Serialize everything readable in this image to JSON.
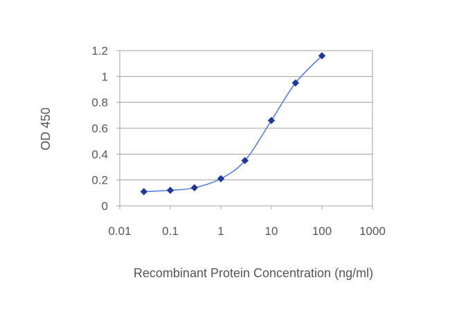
{
  "chart_data": {
    "type": "line",
    "title": "",
    "xlabel": "Recombinant Protein Concentration (ng/ml)",
    "ylabel": "OD 450",
    "x_scale": "log",
    "xlim": [
      0.01,
      1000
    ],
    "ylim": [
      0,
      1.2
    ],
    "x_ticks": [
      0.01,
      0.1,
      1,
      10,
      100,
      1000
    ],
    "x_tick_labels": [
      "0.01",
      "0.1",
      "1",
      "10",
      "100",
      "1000"
    ],
    "y_ticks": [
      0,
      0.2,
      0.4,
      0.6,
      0.8,
      1,
      1.2
    ],
    "y_tick_labels": [
      "0",
      "0.2",
      "0.4",
      "0.6",
      "0.8",
      "1",
      "1.2"
    ],
    "grid": "horizontal",
    "legend": "none",
    "series": [
      {
        "x": [
          0.03,
          0.1,
          0.3,
          1,
          3,
          10,
          30,
          100
        ],
        "y": [
          0.11,
          0.12,
          0.14,
          0.21,
          0.35,
          0.66,
          0.95,
          1.16
        ],
        "color": "#1f3a93",
        "line_color": "#5a7fd6",
        "marker": "diamond"
      }
    ]
  }
}
